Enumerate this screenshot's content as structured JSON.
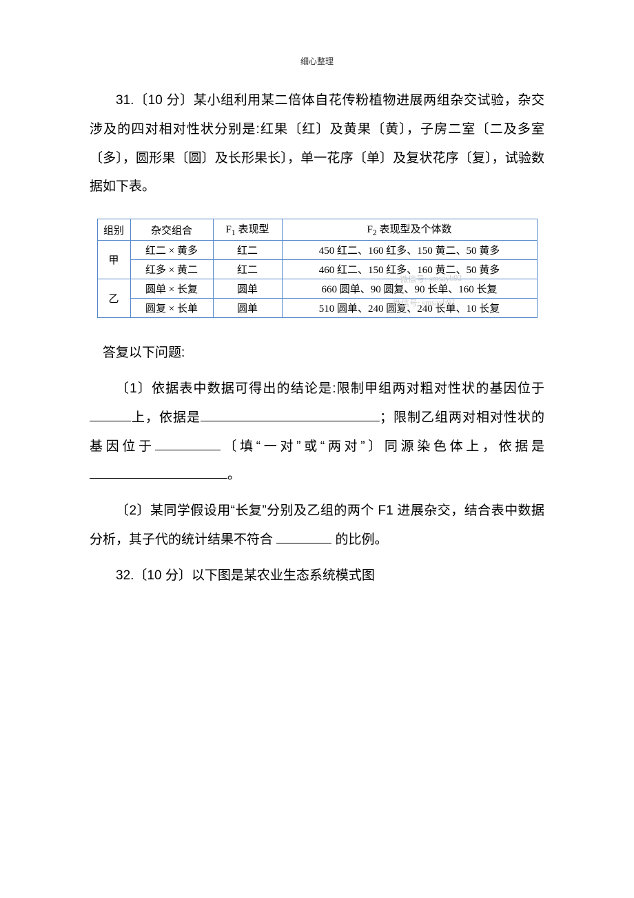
{
  "header": {
    "text": "细心整理"
  },
  "q31": {
    "intro": "31.〔10 分〕某小组利用某二倍体自花传粉植物进展两组杂交试验，杂交涉及的四对相对性状分别是:红果〔红〕及黄果〔黄〕，子房二室〔二及多室〔多〕，圆形果〔圆〕及长形果长〕，单一花序〔单〕及复状花序〔复〕，试验数据如下表。"
  },
  "table": {
    "columns": {
      "group": "组别",
      "combo": "杂交组合",
      "f1_prefix": "F",
      "f1_sub": "1",
      "f1_suffix": " 表现型",
      "f2_prefix": "F",
      "f2_sub": "2",
      "f2_suffix": " 表现型及个体数"
    },
    "groups": [
      {
        "label": "甲",
        "rows": [
          {
            "combo": "红二 × 黄多",
            "f1": "红二",
            "f2": "450 红二、160 红多、150 黄二、50 黄多"
          },
          {
            "combo": "红多 × 黄二",
            "f1": "红二",
            "f2": "460 红二、150 红多、160 黄二、50 黄多"
          }
        ]
      },
      {
        "label": "乙",
        "rows": [
          {
            "combo": "圆单 × 长复",
            "f1": "圆单",
            "f2": "660 圆单、90 圆复、90 长单、160 长复"
          },
          {
            "combo": "圆复 × 长单",
            "f1": "圆单",
            "f2": "510 圆单、240 圆复、240 长单、10 长复"
          }
        ]
      }
    ],
    "border_color": "#5588cc",
    "text_color": "#000000",
    "font_size": 15
  },
  "answer_heading": "答复以下问题:",
  "q31_1": {
    "seg1": "〔1〕依据表中数据可得出的结论是:限制甲组两对粗对性状的基因位于",
    "seg2": "上，依据是",
    "seg3": "；限制乙组两对相对性状的基因位于",
    "seg4": "〔填“一对”或“两对”〕同源染色体上，依据是",
    "seg5": "。"
  },
  "q31_2": {
    "seg1": "〔2〕某同学假设用“长复”分别及乙组的两个 F1 进展杂交，结合表中数据分析，其子代的统计结果不符合 ",
    "seg2": " 的比例。"
  },
  "q32": {
    "text": "32.〔10 分〕以下图是某农业生态系统模式图"
  },
  "watermark": {
    "line1_prefix": "微信号: ",
    "line1_code": "smsayb92",
    "line2_prefix": "微信号: ",
    "line2_code": "smsayb92"
  }
}
